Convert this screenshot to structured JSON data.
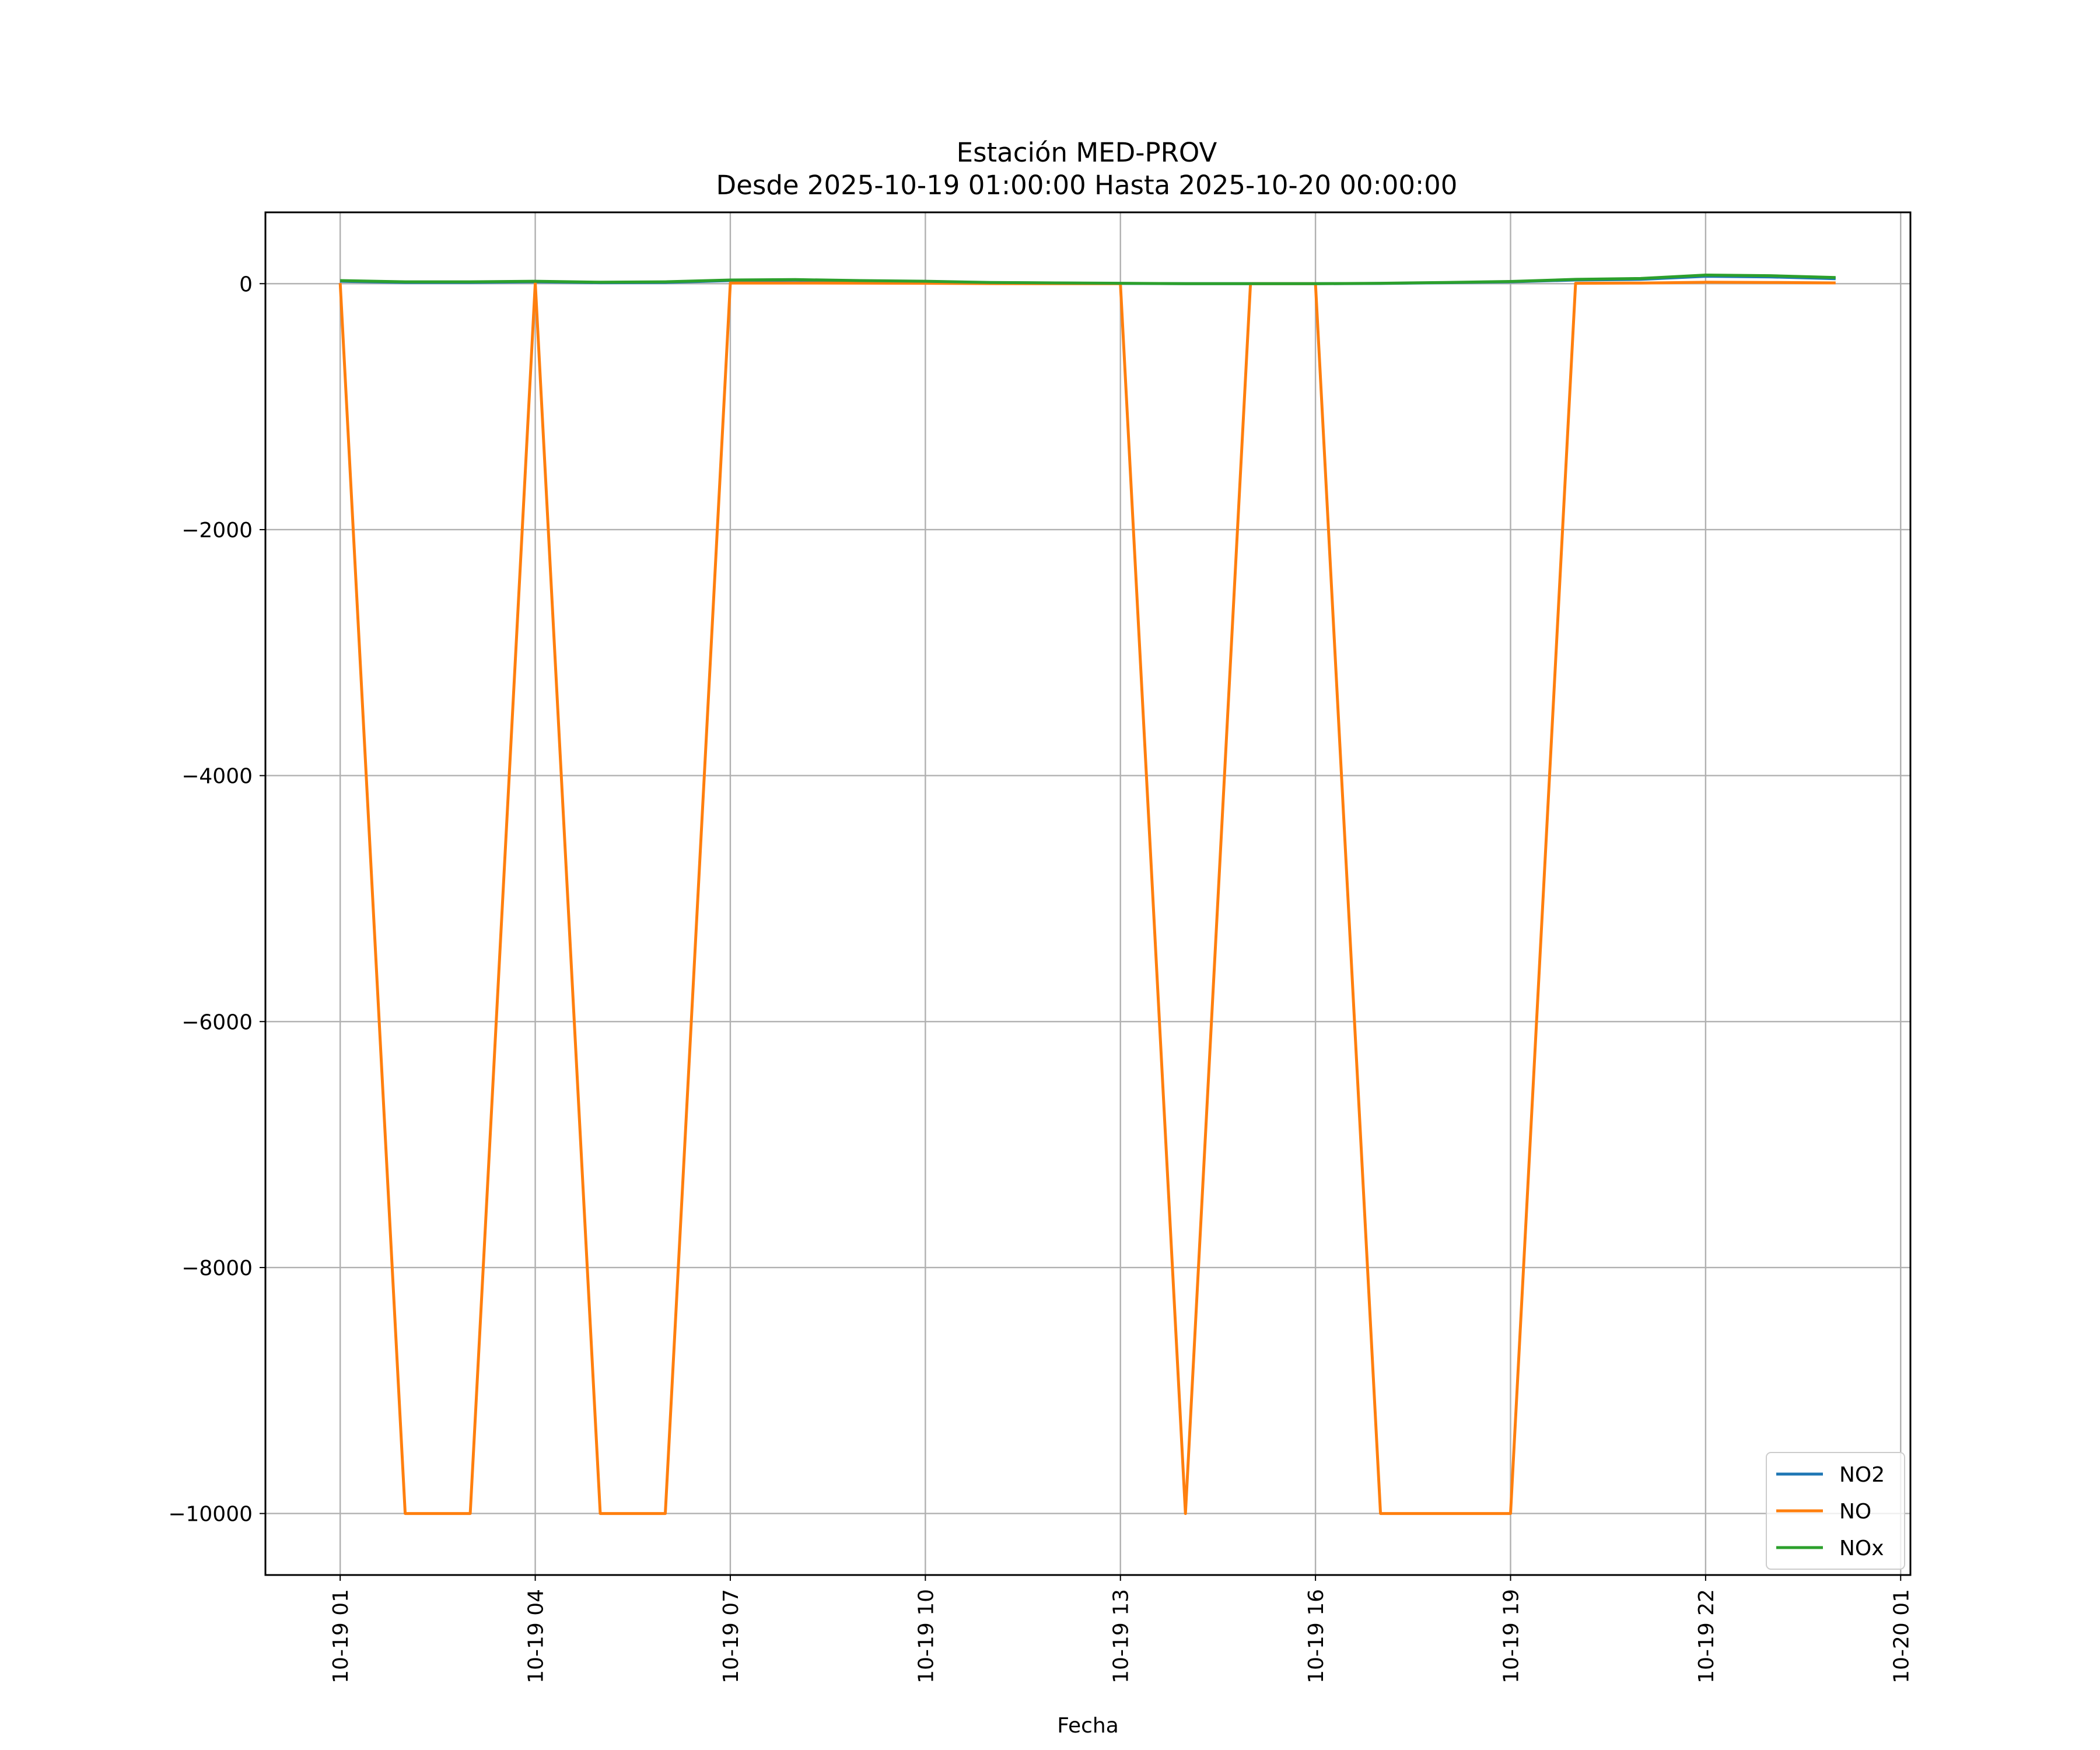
{
  "chart_data": {
    "type": "line",
    "title": "Estación MED-PROV",
    "subtitle": "Desde 2025-10-19 01:00:00 Hasta 2025-10-20 00:00:00",
    "xlabel": "Fecha",
    "ylabel": "",
    "x": [
      "2025-10-19 01:00",
      "2025-10-19 02:00",
      "2025-10-19 03:00",
      "2025-10-19 04:00",
      "2025-10-19 05:00",
      "2025-10-19 06:00",
      "2025-10-19 07:00",
      "2025-10-19 08:00",
      "2025-10-19 09:00",
      "2025-10-19 10:00",
      "2025-10-19 11:00",
      "2025-10-19 12:00",
      "2025-10-19 13:00",
      "2025-10-19 14:00",
      "2025-10-19 15:00",
      "2025-10-19 16:00",
      "2025-10-19 17:00",
      "2025-10-19 18:00",
      "2025-10-19 19:00",
      "2025-10-19 20:00",
      "2025-10-19 21:00",
      "2025-10-19 22:00",
      "2025-10-19 23:00",
      "2025-10-20 00:00"
    ],
    "x_ticks": [
      "10-19 01",
      "10-19 04",
      "10-19 07",
      "10-19 10",
      "10-19 13",
      "10-19 16",
      "10-19 19",
      "10-19 22",
      "10-20 01"
    ],
    "y_ticks": [
      0,
      -2000,
      -4000,
      -6000,
      -8000,
      -10000
    ],
    "y_tick_labels": [
      "0",
      "−2000",
      "−4000",
      "−6000",
      "−8000",
      "−10000"
    ],
    "ylim": [
      -10500,
      580
    ],
    "xlim": [
      "2025-10-18 23:51",
      "2025-10-20 01:09"
    ],
    "grid": true,
    "legend_position": "lower right",
    "series": [
      {
        "name": "NO2",
        "color": "#1f77b4",
        "values": [
          20,
          10,
          10,
          15,
          8,
          10,
          25,
          28,
          20,
          15,
          8,
          5,
          2,
          0,
          0,
          0,
          2,
          8,
          15,
          30,
          35,
          60,
          55,
          40
        ]
      },
      {
        "name": "NO",
        "color": "#ff7f0e",
        "values": [
          5,
          -10000,
          -10000,
          5,
          -10000,
          -10000,
          5,
          5,
          4,
          3,
          1,
          0,
          0,
          -10000,
          0,
          0,
          -10000,
          -10000,
          -10000,
          3,
          5,
          12,
          10,
          6
        ]
      },
      {
        "name": "NOx",
        "color": "#2ca02c",
        "values": [
          25,
          15,
          15,
          20,
          12,
          15,
          30,
          33,
          25,
          20,
          10,
          6,
          3,
          0,
          0,
          0,
          3,
          10,
          18,
          35,
          42,
          70,
          65,
          50
        ]
      }
    ]
  }
}
